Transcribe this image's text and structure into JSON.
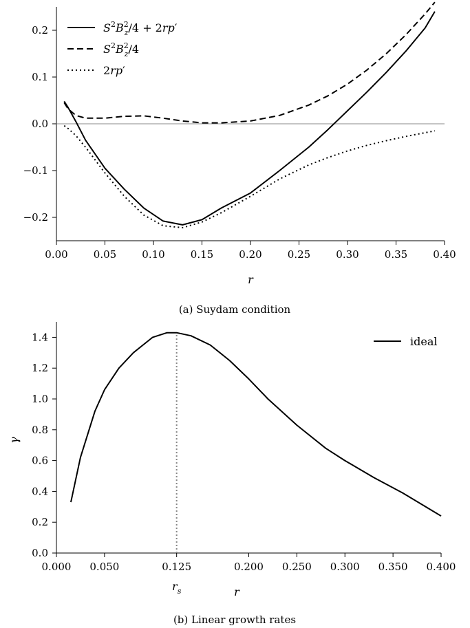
{
  "chart_data": [
    {
      "type": "line",
      "caption": "(a) Suydam condition",
      "xlabel": "r",
      "ylabel": "",
      "xlim": [
        0,
        0.4
      ],
      "ylim": [
        -0.25,
        0.25
      ],
      "xticks": [
        "0.00",
        "0.05",
        "0.10",
        "0.15",
        "0.20",
        "0.25",
        "0.30",
        "0.35",
        "0.40"
      ],
      "xtick_values": [
        0,
        0.05,
        0.1,
        0.15,
        0.2,
        0.25,
        0.3,
        0.35,
        0.4
      ],
      "yticks": [
        "−0.2",
        "−0.1",
        "0.0",
        "0.1",
        "0.2"
      ],
      "ytick_values": [
        -0.2,
        -0.1,
        0.0,
        0.1,
        0.2
      ],
      "reference_line_y": 0,
      "legend_placement": "top-left",
      "series": [
        {
          "name": "S²B_z²/4 + 2rp′",
          "style": "solid",
          "x": [
            0.008,
            0.012,
            0.02,
            0.03,
            0.05,
            0.07,
            0.09,
            0.11,
            0.13,
            0.15,
            0.17,
            0.2,
            0.23,
            0.26,
            0.28,
            0.3,
            0.32,
            0.34,
            0.36,
            0.38,
            0.39
          ],
          "y": [
            0.048,
            0.035,
            0.005,
            -0.035,
            -0.095,
            -0.14,
            -0.18,
            -0.208,
            -0.216,
            -0.205,
            -0.18,
            -0.148,
            -0.1,
            -0.05,
            -0.012,
            0.028,
            0.068,
            0.11,
            0.155,
            0.205,
            0.24
          ]
        },
        {
          "name": "S²B_z²/4",
          "style": "dashed",
          "x": [
            0.008,
            0.012,
            0.02,
            0.03,
            0.05,
            0.07,
            0.09,
            0.11,
            0.13,
            0.15,
            0.17,
            0.2,
            0.23,
            0.26,
            0.28,
            0.3,
            0.32,
            0.34,
            0.36,
            0.38,
            0.39
          ],
          "y": [
            0.045,
            0.032,
            0.018,
            0.012,
            0.012,
            0.016,
            0.017,
            0.012,
            0.006,
            0.002,
            0.002,
            0.006,
            0.018,
            0.04,
            0.06,
            0.085,
            0.115,
            0.15,
            0.19,
            0.235,
            0.26
          ]
        },
        {
          "name": "2rp′",
          "style": "dotted",
          "x": [
            0.008,
            0.012,
            0.02,
            0.03,
            0.05,
            0.07,
            0.09,
            0.11,
            0.13,
            0.15,
            0.17,
            0.2,
            0.23,
            0.26,
            0.28,
            0.3,
            0.32,
            0.34,
            0.36,
            0.38,
            0.39
          ],
          "y": [
            -0.004,
            -0.01,
            -0.025,
            -0.05,
            -0.105,
            -0.155,
            -0.195,
            -0.218,
            -0.222,
            -0.21,
            -0.19,
            -0.155,
            -0.118,
            -0.088,
            -0.072,
            -0.058,
            -0.046,
            -0.036,
            -0.027,
            -0.019,
            -0.015
          ]
        }
      ]
    },
    {
      "type": "line",
      "caption": "(b) Linear growth rates",
      "xlabel": "r",
      "ylabel": "γ",
      "xlim": [
        0,
        0.4
      ],
      "ylim": [
        0,
        1.5
      ],
      "xticks": [
        "0.000",
        "0.050",
        "0.125",
        "0.200",
        "0.250",
        "0.300",
        "0.350",
        "0.400"
      ],
      "xtick_values": [
        0,
        0.05,
        0.125,
        0.2,
        0.25,
        0.3,
        0.35,
        0.4
      ],
      "yticks": [
        "0.0",
        "0.2",
        "0.4",
        "0.6",
        "0.8",
        "1.0",
        "1.2",
        "1.4"
      ],
      "ytick_values": [
        0,
        0.2,
        0.4,
        0.6,
        0.8,
        1.0,
        1.2,
        1.4
      ],
      "rs_label": "r_s",
      "rs_value": 0.125,
      "legend_placement": "top-right",
      "series": [
        {
          "name": "ideal",
          "style": "solid",
          "x": [
            0.015,
            0.025,
            0.04,
            0.05,
            0.065,
            0.08,
            0.1,
            0.115,
            0.125,
            0.14,
            0.16,
            0.18,
            0.2,
            0.22,
            0.25,
            0.28,
            0.3,
            0.33,
            0.36,
            0.4
          ],
          "y": [
            0.33,
            0.62,
            0.92,
            1.06,
            1.2,
            1.3,
            1.4,
            1.43,
            1.43,
            1.41,
            1.35,
            1.25,
            1.13,
            1.0,
            0.83,
            0.68,
            0.6,
            0.49,
            0.39,
            0.24
          ]
        }
      ]
    }
  ]
}
